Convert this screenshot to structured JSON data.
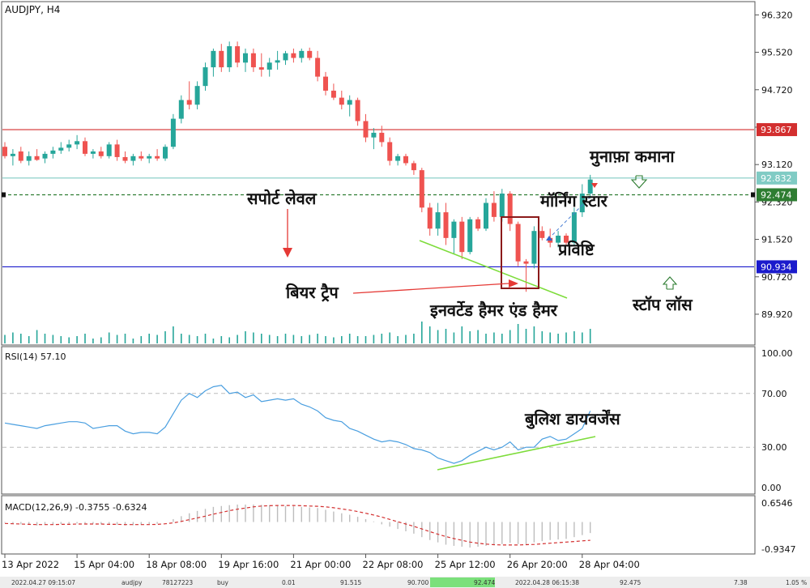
{
  "symbol_title": "AUDJPY, H4",
  "rsi_label": "RSI(14) 57.10",
  "macd_label": "MACD(12,26,9) -0.3755 -0.6324",
  "colors": {
    "bull": "#26a69a",
    "bear": "#ef5350",
    "resistance": "#d32f2f",
    "support": "#1a1acc",
    "entry": "#2e7d32",
    "target": "#80cbc4",
    "rsi": "#4a9fe0",
    "macd_signal": "#d32f2f",
    "macd_hist": "#bdbdbd",
    "trend": "#7ddc3a",
    "box": "#8b1a1a"
  },
  "chart_data": {
    "type": "candlestick",
    "symbol": "AUDJPY",
    "timeframe": "H4",
    "ylim": [
      89.4,
      96.5
    ],
    "price_ticks": [
      "96.320",
      "95.520",
      "94.720",
      "93.920",
      "93.120",
      "92.320",
      "91.520",
      "90.720",
      "89.920"
    ],
    "x_tick_labels": [
      "13 Apr 2022",
      "15 Apr 04:00",
      "18 Apr 08:00",
      "19 Apr 16:00",
      "21 Apr 00:00",
      "22 Apr 08:00",
      "25 Apr 12:00",
      "26 Apr 20:00",
      "28 Apr 04:00"
    ],
    "x_tick_index": [
      0,
      9,
      18,
      27,
      36,
      45,
      54,
      63,
      72
    ],
    "levels": [
      {
        "label": "93.867",
        "value": 93.867,
        "kind": "resistance"
      },
      {
        "label": "92.832",
        "value": 92.832,
        "kind": "target"
      },
      {
        "label": "92.474",
        "value": 92.474,
        "kind": "entry"
      },
      {
        "label": "90.934",
        "value": 90.934,
        "kind": "support"
      }
    ],
    "candles": [
      {
        "o": 93.5,
        "h": 93.6,
        "l": 93.25,
        "c": 93.3
      },
      {
        "o": 93.3,
        "h": 93.45,
        "l": 93.1,
        "c": 93.35
      },
      {
        "o": 93.4,
        "h": 93.5,
        "l": 93.15,
        "c": 93.2
      },
      {
        "o": 93.2,
        "h": 93.4,
        "l": 93.1,
        "c": 93.3
      },
      {
        "o": 93.3,
        "h": 93.45,
        "l": 93.2,
        "c": 93.22
      },
      {
        "o": 93.25,
        "h": 93.4,
        "l": 93.15,
        "c": 93.35
      },
      {
        "o": 93.35,
        "h": 93.5,
        "l": 93.25,
        "c": 93.42
      },
      {
        "o": 93.42,
        "h": 93.6,
        "l": 93.35,
        "c": 93.48
      },
      {
        "o": 93.48,
        "h": 93.65,
        "l": 93.4,
        "c": 93.55
      },
      {
        "o": 93.55,
        "h": 93.75,
        "l": 93.45,
        "c": 93.62
      },
      {
        "o": 93.62,
        "h": 93.7,
        "l": 93.3,
        "c": 93.35
      },
      {
        "o": 93.35,
        "h": 93.45,
        "l": 93.25,
        "c": 93.4
      },
      {
        "o": 93.4,
        "h": 93.5,
        "l": 93.25,
        "c": 93.3
      },
      {
        "o": 93.3,
        "h": 93.6,
        "l": 93.25,
        "c": 93.55
      },
      {
        "o": 93.55,
        "h": 93.65,
        "l": 93.2,
        "c": 93.28
      },
      {
        "o": 93.28,
        "h": 93.4,
        "l": 93.15,
        "c": 93.2
      },
      {
        "o": 93.2,
        "h": 93.35,
        "l": 93.1,
        "c": 93.3
      },
      {
        "o": 93.3,
        "h": 93.4,
        "l": 93.2,
        "c": 93.25
      },
      {
        "o": 93.25,
        "h": 93.35,
        "l": 93.15,
        "c": 93.3
      },
      {
        "o": 93.3,
        "h": 93.45,
        "l": 93.2,
        "c": 93.25
      },
      {
        "o": 93.25,
        "h": 93.55,
        "l": 93.2,
        "c": 93.5
      },
      {
        "o": 93.5,
        "h": 94.2,
        "l": 93.45,
        "c": 94.1
      },
      {
        "o": 94.1,
        "h": 94.6,
        "l": 94.0,
        "c": 94.5
      },
      {
        "o": 94.5,
        "h": 94.9,
        "l": 94.3,
        "c": 94.4
      },
      {
        "o": 94.4,
        "h": 94.9,
        "l": 94.3,
        "c": 94.8
      },
      {
        "o": 94.8,
        "h": 95.3,
        "l": 94.7,
        "c": 95.2
      },
      {
        "o": 95.2,
        "h": 95.6,
        "l": 95.0,
        "c": 95.55
      },
      {
        "o": 95.55,
        "h": 95.7,
        "l": 95.1,
        "c": 95.2
      },
      {
        "o": 95.2,
        "h": 95.75,
        "l": 95.1,
        "c": 95.65
      },
      {
        "o": 95.65,
        "h": 95.75,
        "l": 95.2,
        "c": 95.3
      },
      {
        "o": 95.3,
        "h": 95.6,
        "l": 95.1,
        "c": 95.5
      },
      {
        "o": 95.5,
        "h": 95.6,
        "l": 95.1,
        "c": 95.2
      },
      {
        "o": 95.2,
        "h": 95.5,
        "l": 95.0,
        "c": 95.15
      },
      {
        "o": 95.15,
        "h": 95.4,
        "l": 95.0,
        "c": 95.3
      },
      {
        "o": 95.3,
        "h": 95.55,
        "l": 95.15,
        "c": 95.35
      },
      {
        "o": 95.35,
        "h": 95.55,
        "l": 95.25,
        "c": 95.5
      },
      {
        "o": 95.5,
        "h": 95.6,
        "l": 95.3,
        "c": 95.4
      },
      {
        "o": 95.4,
        "h": 95.6,
        "l": 95.3,
        "c": 95.55
      },
      {
        "o": 95.55,
        "h": 95.62,
        "l": 95.35,
        "c": 95.4
      },
      {
        "o": 95.4,
        "h": 95.55,
        "l": 94.9,
        "c": 95.0
      },
      {
        "o": 95.0,
        "h": 95.1,
        "l": 94.6,
        "c": 94.7
      },
      {
        "o": 94.7,
        "h": 94.85,
        "l": 94.5,
        "c": 94.55
      },
      {
        "o": 94.55,
        "h": 94.7,
        "l": 94.3,
        "c": 94.4
      },
      {
        "o": 94.4,
        "h": 94.6,
        "l": 94.15,
        "c": 94.5
      },
      {
        "o": 94.5,
        "h": 94.55,
        "l": 93.95,
        "c": 94.05
      },
      {
        "o": 94.05,
        "h": 94.2,
        "l": 93.6,
        "c": 93.7
      },
      {
        "o": 93.7,
        "h": 93.9,
        "l": 93.45,
        "c": 93.8
      },
      {
        "o": 93.8,
        "h": 93.95,
        "l": 93.5,
        "c": 93.6
      },
      {
        "o": 93.6,
        "h": 93.7,
        "l": 93.1,
        "c": 93.2
      },
      {
        "o": 93.2,
        "h": 93.35,
        "l": 93.1,
        "c": 93.3
      },
      {
        "o": 93.3,
        "h": 93.35,
        "l": 93.1,
        "c": 93.15
      },
      {
        "o": 93.15,
        "h": 93.2,
        "l": 92.9,
        "c": 93.0
      },
      {
        "o": 93.0,
        "h": 93.05,
        "l": 92.1,
        "c": 92.2
      },
      {
        "o": 92.2,
        "h": 92.3,
        "l": 91.6,
        "c": 91.75
      },
      {
        "o": 91.75,
        "h": 92.3,
        "l": 91.6,
        "c": 92.1
      },
      {
        "o": 92.1,
        "h": 92.3,
        "l": 91.4,
        "c": 91.55
      },
      {
        "o": 91.55,
        "h": 91.95,
        "l": 91.2,
        "c": 91.9
      },
      {
        "o": 91.9,
        "h": 92.0,
        "l": 91.1,
        "c": 91.25
      },
      {
        "o": 91.25,
        "h": 92.0,
        "l": 91.2,
        "c": 91.95
      },
      {
        "o": 91.95,
        "h": 92.0,
        "l": 91.7,
        "c": 91.75
      },
      {
        "o": 91.75,
        "h": 92.4,
        "l": 91.7,
        "c": 92.3
      },
      {
        "o": 92.3,
        "h": 92.55,
        "l": 91.9,
        "c": 92.0
      },
      {
        "o": 92.0,
        "h": 92.6,
        "l": 91.9,
        "c": 92.5
      },
      {
        "o": 92.5,
        "h": 92.55,
        "l": 91.7,
        "c": 91.85
      },
      {
        "o": 91.85,
        "h": 91.9,
        "l": 90.95,
        "c": 91.05
      },
      {
        "o": 91.05,
        "h": 91.1,
        "l": 90.4,
        "c": 91.0
      },
      {
        "o": 91.0,
        "h": 91.8,
        "l": 90.9,
        "c": 91.7
      },
      {
        "o": 91.7,
        "h": 91.8,
        "l": 91.5,
        "c": 91.55
      },
      {
        "o": 91.55,
        "h": 91.75,
        "l": 91.35,
        "c": 91.45
      },
      {
        "o": 91.45,
        "h": 91.7,
        "l": 91.35,
        "c": 91.6
      },
      {
        "o": 91.6,
        "h": 91.65,
        "l": 91.4,
        "c": 91.45
      },
      {
        "o": 91.45,
        "h": 92.2,
        "l": 91.4,
        "c": 92.1
      },
      {
        "o": 92.1,
        "h": 92.7,
        "l": 92.0,
        "c": 92.5
      },
      {
        "o": 92.5,
        "h": 92.9,
        "l": 92.4,
        "c": 92.8
      }
    ],
    "volume": [
      0.35,
      0.45,
      0.4,
      0.3,
      0.55,
      0.4,
      0.35,
      0.3,
      0.25,
      0.3,
      0.4,
      0.2,
      0.25,
      0.45,
      0.35,
      0.4,
      0.2,
      0.3,
      0.4,
      0.35,
      0.5,
      0.7,
      0.4,
      0.35,
      0.3,
      0.4,
      0.2,
      0.3,
      0.25,
      0.35,
      0.5,
      0.45,
      0.4,
      0.35,
      0.3,
      0.4,
      0.35,
      0.3,
      0.35,
      0.4,
      0.3,
      0.25,
      0.3,
      0.4,
      0.3,
      0.3,
      0.35,
      0.4,
      0.45,
      0.3,
      0.35,
      0.4,
      0.9,
      0.7,
      0.55,
      0.6,
      0.45,
      0.7,
      0.5,
      0.55,
      0.4,
      0.45,
      0.4,
      0.55,
      0.8,
      0.6,
      0.7,
      0.5,
      0.45,
      0.4,
      0.45,
      0.5,
      0.45,
      0.6
    ],
    "rsi": {
      "label": "RSI(14) 57.10",
      "ylim": [
        0,
        100
      ],
      "ticks": [
        "100.00",
        "70.00",
        "30.00",
        "0.00"
      ],
      "tick_values": [
        100,
        70,
        30,
        0
      ],
      "levels": [
        70,
        30
      ],
      "values": [
        48,
        47,
        46,
        45,
        44,
        46,
        47,
        48,
        49,
        49,
        48,
        44,
        45,
        46,
        46,
        42,
        40,
        41,
        41,
        40,
        45,
        55,
        65,
        70,
        67,
        72,
        75,
        76,
        70,
        71,
        67,
        69,
        64,
        65,
        66,
        65,
        66,
        62,
        60,
        57,
        52,
        50,
        49,
        44,
        42,
        39,
        36,
        34,
        35,
        34,
        32,
        29,
        28,
        26,
        22,
        20,
        18,
        20,
        24,
        27,
        30,
        28,
        30,
        34,
        28,
        30,
        30,
        36,
        38,
        35,
        36,
        40,
        44,
        57
      ]
    },
    "macd": {
      "label": "MACD(12,26,9) -0.3755 -0.6324",
      "ylim": [
        -1.1,
        0.85
      ],
      "ticks": [
        "0.6546",
        "-0.9347"
      ],
      "tick_values": [
        0.6546,
        -0.9347
      ],
      "histogram": [
        -0.02,
        -0.05,
        -0.08,
        -0.1,
        -0.12,
        -0.1,
        -0.08,
        -0.07,
        -0.06,
        -0.05,
        -0.05,
        -0.06,
        -0.08,
        -0.08,
        -0.1,
        -0.12,
        -0.11,
        -0.1,
        -0.08,
        -0.06,
        0.0,
        0.1,
        0.2,
        0.3,
        0.38,
        0.45,
        0.52,
        0.55,
        0.58,
        0.6,
        0.6,
        0.6,
        0.59,
        0.58,
        0.56,
        0.55,
        0.54,
        0.52,
        0.5,
        0.48,
        0.42,
        0.36,
        0.3,
        0.25,
        0.18,
        0.1,
        0.02,
        -0.08,
        -0.16,
        -0.24,
        -0.32,
        -0.4,
        -0.52,
        -0.62,
        -0.7,
        -0.78,
        -0.82,
        -0.85,
        -0.88,
        -0.85,
        -0.82,
        -0.8,
        -0.76,
        -0.72,
        -0.76,
        -0.76,
        -0.7,
        -0.66,
        -0.62,
        -0.6,
        -0.58,
        -0.52,
        -0.45,
        -0.38
      ],
      "signal": [
        -0.05,
        -0.06,
        -0.07,
        -0.08,
        -0.09,
        -0.09,
        -0.09,
        -0.08,
        -0.08,
        -0.07,
        -0.07,
        -0.07,
        -0.07,
        -0.08,
        -0.08,
        -0.09,
        -0.09,
        -0.09,
        -0.09,
        -0.08,
        -0.06,
        -0.03,
        0.02,
        0.08,
        0.14,
        0.2,
        0.27,
        0.33,
        0.39,
        0.44,
        0.48,
        0.52,
        0.55,
        0.56,
        0.57,
        0.57,
        0.57,
        0.56,
        0.55,
        0.54,
        0.52,
        0.49,
        0.45,
        0.41,
        0.36,
        0.3,
        0.24,
        0.17,
        0.09,
        0.01,
        -0.07,
        -0.15,
        -0.24,
        -0.33,
        -0.42,
        -0.5,
        -0.57,
        -0.63,
        -0.69,
        -0.73,
        -0.76,
        -0.78,
        -0.79,
        -0.79,
        -0.79,
        -0.78,
        -0.77,
        -0.75,
        -0.73,
        -0.71,
        -0.69,
        -0.67,
        -0.65,
        -0.63
      ]
    },
    "annotations": [
      {
        "key": "resistance",
        "text": "सपोर्ट लेवल"
      },
      {
        "key": "bear_trap",
        "text": "बियर ट्रैप"
      },
      {
        "key": "hammer",
        "text": "इनवर्टेड हैमर एंड हैमर"
      },
      {
        "key": "morning_star",
        "text": "मॉर्निंग स्टार"
      },
      {
        "key": "entry",
        "text": "प्रविष्टि"
      },
      {
        "key": "take_profit",
        "text": "मुनाफ़ा कमाना"
      },
      {
        "key": "stop_loss",
        "text": "स्टॉप लॉस"
      },
      {
        "key": "divergence",
        "text": "बुलिश डायवर्जेंस"
      }
    ]
  },
  "status_bar": [
    "2022.04.27 09:15:07",
    "audjpy",
    "78127223",
    "buy",
    "0.01",
    "91.515",
    "90.700",
    "92.474",
    "2022.04.28 06:15:38",
    "92.475",
    "7.38",
    "1.05 %"
  ]
}
